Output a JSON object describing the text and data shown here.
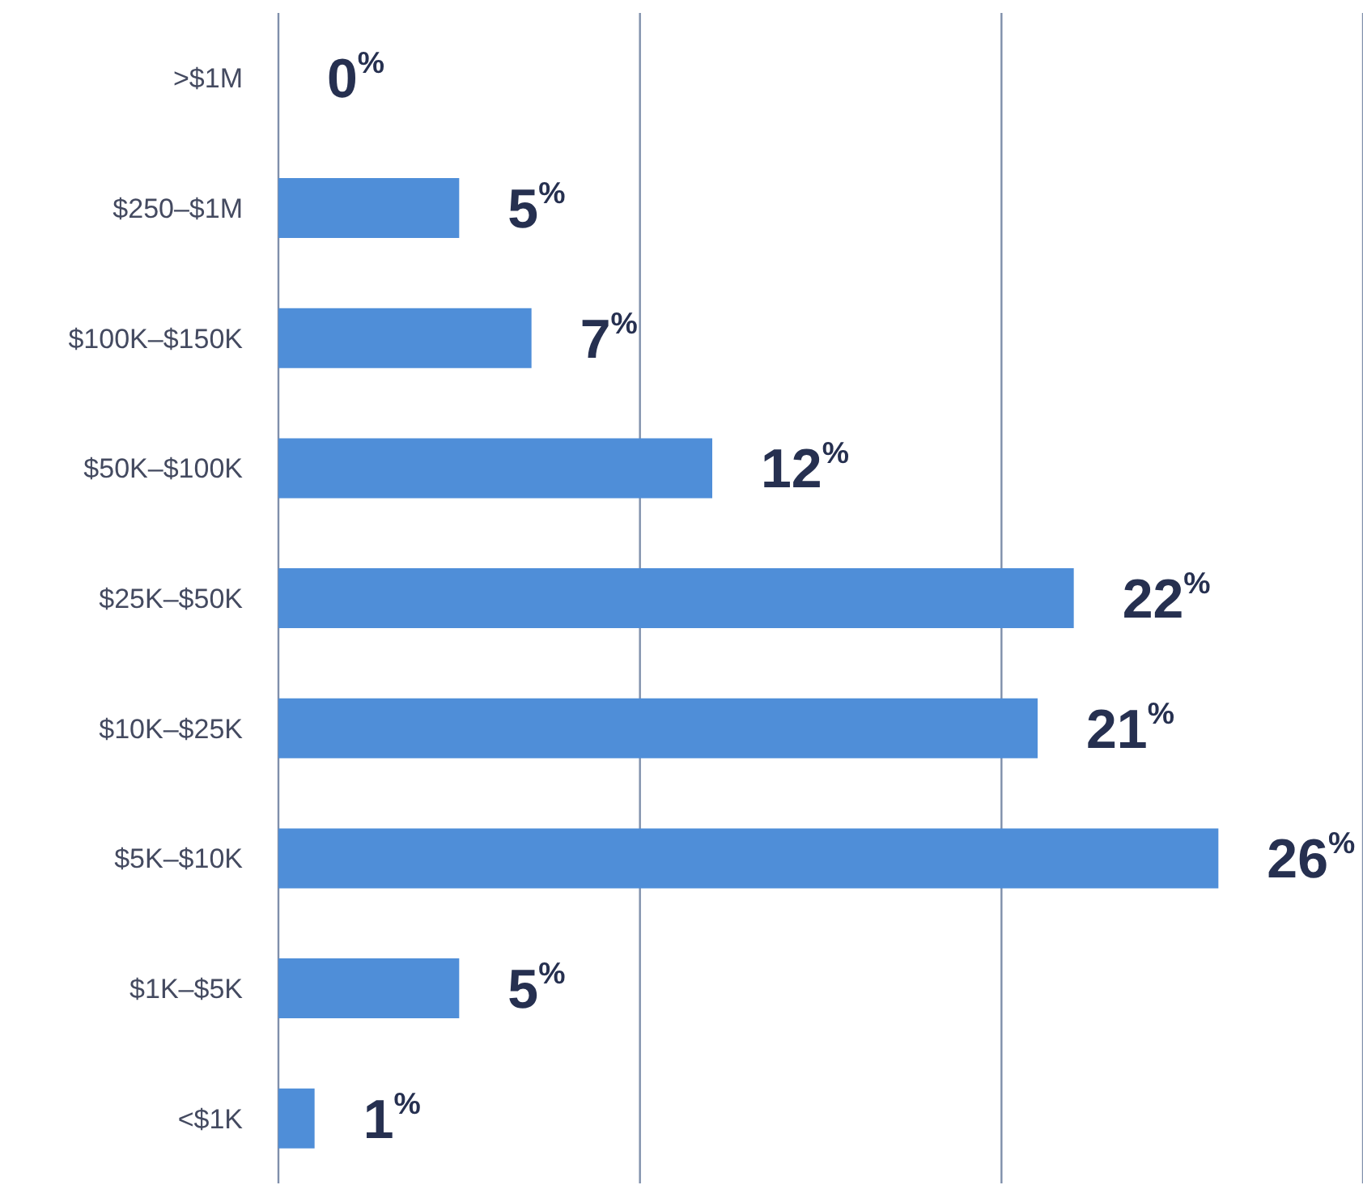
{
  "chart_data": {
    "type": "bar",
    "orientation": "horizontal",
    "categories": [
      ">$1M",
      "$250–$1M",
      "$100K–$150K",
      "$50K–$100K",
      "$25K–$50K",
      "$10K–$25K",
      "$5K–$10K",
      "$1K–$5K",
      "<$1K"
    ],
    "values": [
      0,
      5,
      7,
      12,
      22,
      21,
      26,
      5,
      1
    ],
    "color": "#4f8ed8",
    "value_labels": [
      "0$^{%}$",
      "5$^{%}$",
      "7$^{%}$",
      "12$^{%}$",
      "22$^{%}$",
      "21$^{%}$",
      "26$^{%}$",
      "5$^{%}$",
      "1$^{%}$"
    ],
    "xlim": [
      0,
      30
    ],
    "xticks": [
      {
        "value": 0,
        "label": null
      },
      {
        "value": 10,
        "label": null
      },
      {
        "value": 20,
        "label": null
      }
    ],
    "grid": "x",
    "tick_labels": "y"
  }
}
